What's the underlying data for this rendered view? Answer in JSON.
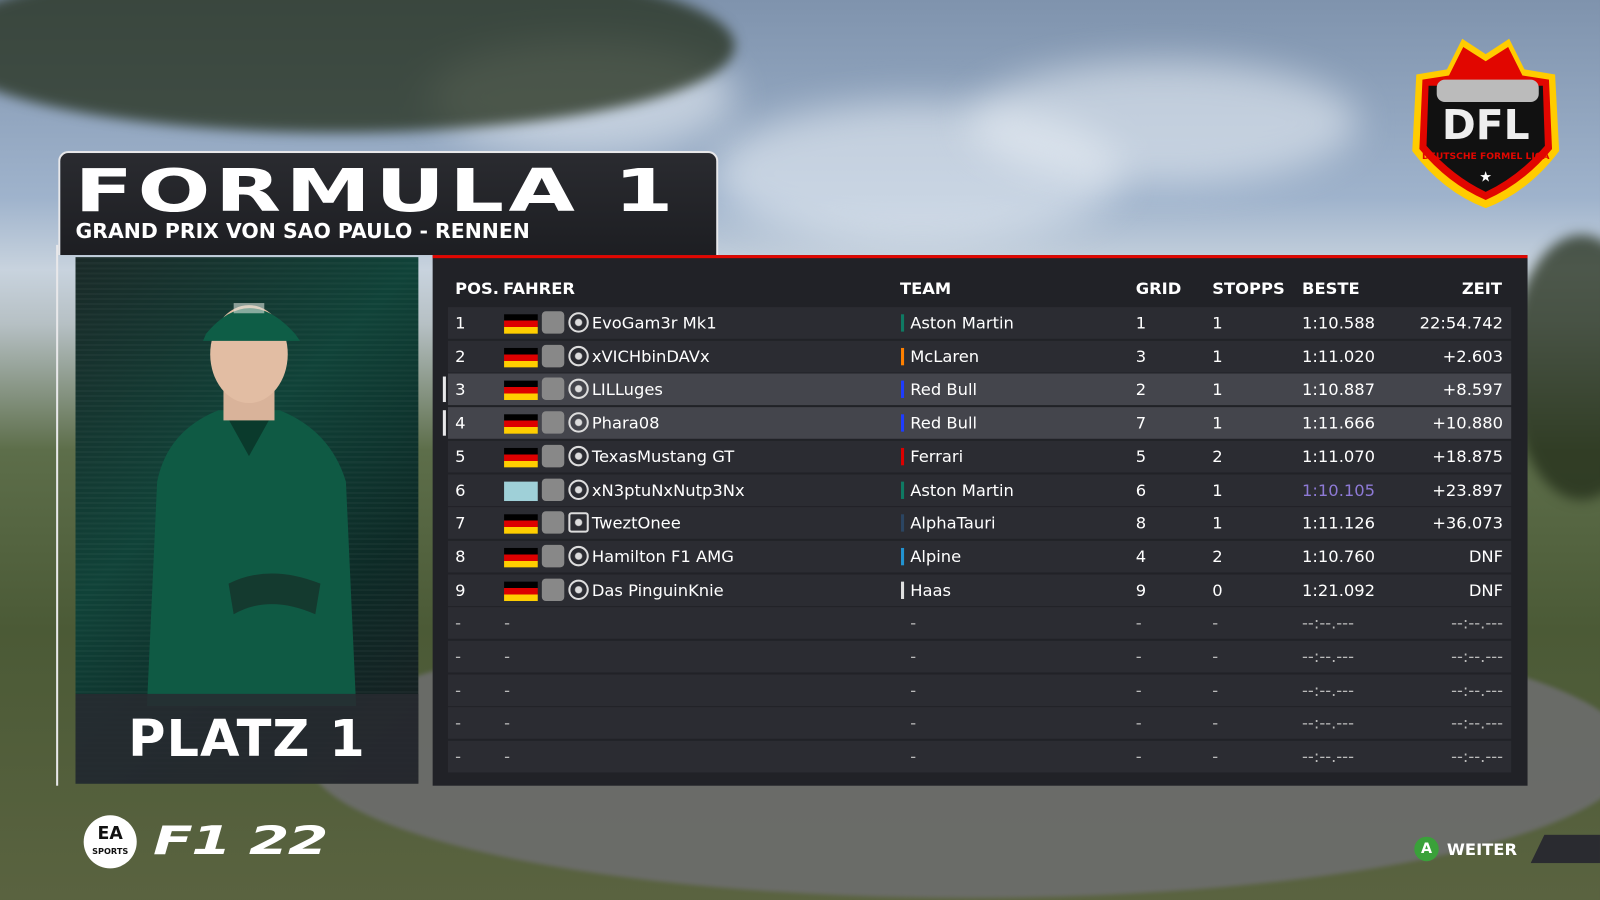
{
  "header": {
    "title": "FORMULA 1",
    "subtitle": "GRAND PRIX VON SAO PAULO - RENNEN"
  },
  "driver_card": {
    "placement": "PLATZ 1"
  },
  "league_logo": {
    "text": "DFL",
    "tagline": "DEUTSCHE FORMEL LIGA"
  },
  "table": {
    "columns": {
      "pos": "POS.",
      "driver": "FAHRER",
      "team": "TEAM",
      "grid": "GRID",
      "stops": "STOPPS",
      "best": "BESTE",
      "time": "ZEIT"
    },
    "rows": [
      {
        "pos": "1",
        "driver": "EvoGam3r Mk1",
        "team": "Aston Martin",
        "team_color": "#0f7a63",
        "grid": "1",
        "stops": "1",
        "best": "1:10.588",
        "time": "22:54.742",
        "flag": "germany",
        "platform": "xbox-icon",
        "highlight": false
      },
      {
        "pos": "2",
        "driver": "xVICHbinDAVx",
        "team": "McLaren",
        "team_color": "#ff8000",
        "grid": "3",
        "stops": "1",
        "best": "1:11.020",
        "time": "+2.603",
        "flag": "germany",
        "platform": "xbox-icon",
        "highlight": false
      },
      {
        "pos": "3",
        "driver": "LILLuges",
        "team": "Red Bull",
        "team_color": "#1e3cff",
        "grid": "2",
        "stops": "1",
        "best": "1:10.887",
        "time": "+8.597",
        "flag": "germany",
        "platform": "xbox-icon",
        "highlight": true
      },
      {
        "pos": "4",
        "driver": "Phara08",
        "team": "Red Bull",
        "team_color": "#1e3cff",
        "grid": "7",
        "stops": "1",
        "best": "1:11.666",
        "time": "+10.880",
        "flag": "germany",
        "platform": "xbox-icon",
        "highlight": true
      },
      {
        "pos": "5",
        "driver": "TexasMustang GT",
        "team": "Ferrari",
        "team_color": "#dc0000",
        "grid": "5",
        "stops": "2",
        "best": "1:11.070",
        "time": "+18.875",
        "flag": "germany",
        "platform": "xbox-icon",
        "highlight": false
      },
      {
        "pos": "6",
        "driver": "xN3ptuNxNutp3Nx",
        "team": "Aston Martin",
        "team_color": "#0f7a63",
        "grid": "6",
        "stops": "1",
        "best": "1:10.105",
        "best_color": "#8e7ad6",
        "time": "+23.897",
        "flag": "world",
        "platform": "xbox-icon",
        "highlight": false
      },
      {
        "pos": "7",
        "driver": "TweztOnee",
        "team": "AlphaTauri",
        "team_color": "#2b4562",
        "grid": "8",
        "stops": "1",
        "best": "1:11.126",
        "time": "+36.073",
        "flag": "germany",
        "platform": "pc-icon",
        "highlight": false
      },
      {
        "pos": "8",
        "driver": "Hamilton F1 AMG",
        "team": "Alpine",
        "team_color": "#2293d1",
        "grid": "4",
        "stops": "2",
        "best": "1:10.760",
        "time": "DNF",
        "flag": "germany",
        "platform": "xbox-icon",
        "highlight": false
      },
      {
        "pos": "9",
        "driver": "Das PinguinKnie",
        "team": "Haas",
        "team_color": "#e0e0e0",
        "grid": "9",
        "stops": "0",
        "best": "1:21.092",
        "time": "DNF",
        "flag": "germany",
        "platform": "xbox-icon",
        "highlight": false
      }
    ],
    "empty_rows": 5,
    "empty": {
      "dash": "-",
      "time": "--:--.---"
    }
  },
  "branding": {
    "ea": "EA",
    "ea_sub": "SPORTS",
    "game": "F1 22"
  },
  "footer": {
    "continue_key": "A",
    "continue_label": "WEITER"
  },
  "colors": {
    "accent": "#e10600",
    "fastest_lap": "#8e7ad6"
  }
}
